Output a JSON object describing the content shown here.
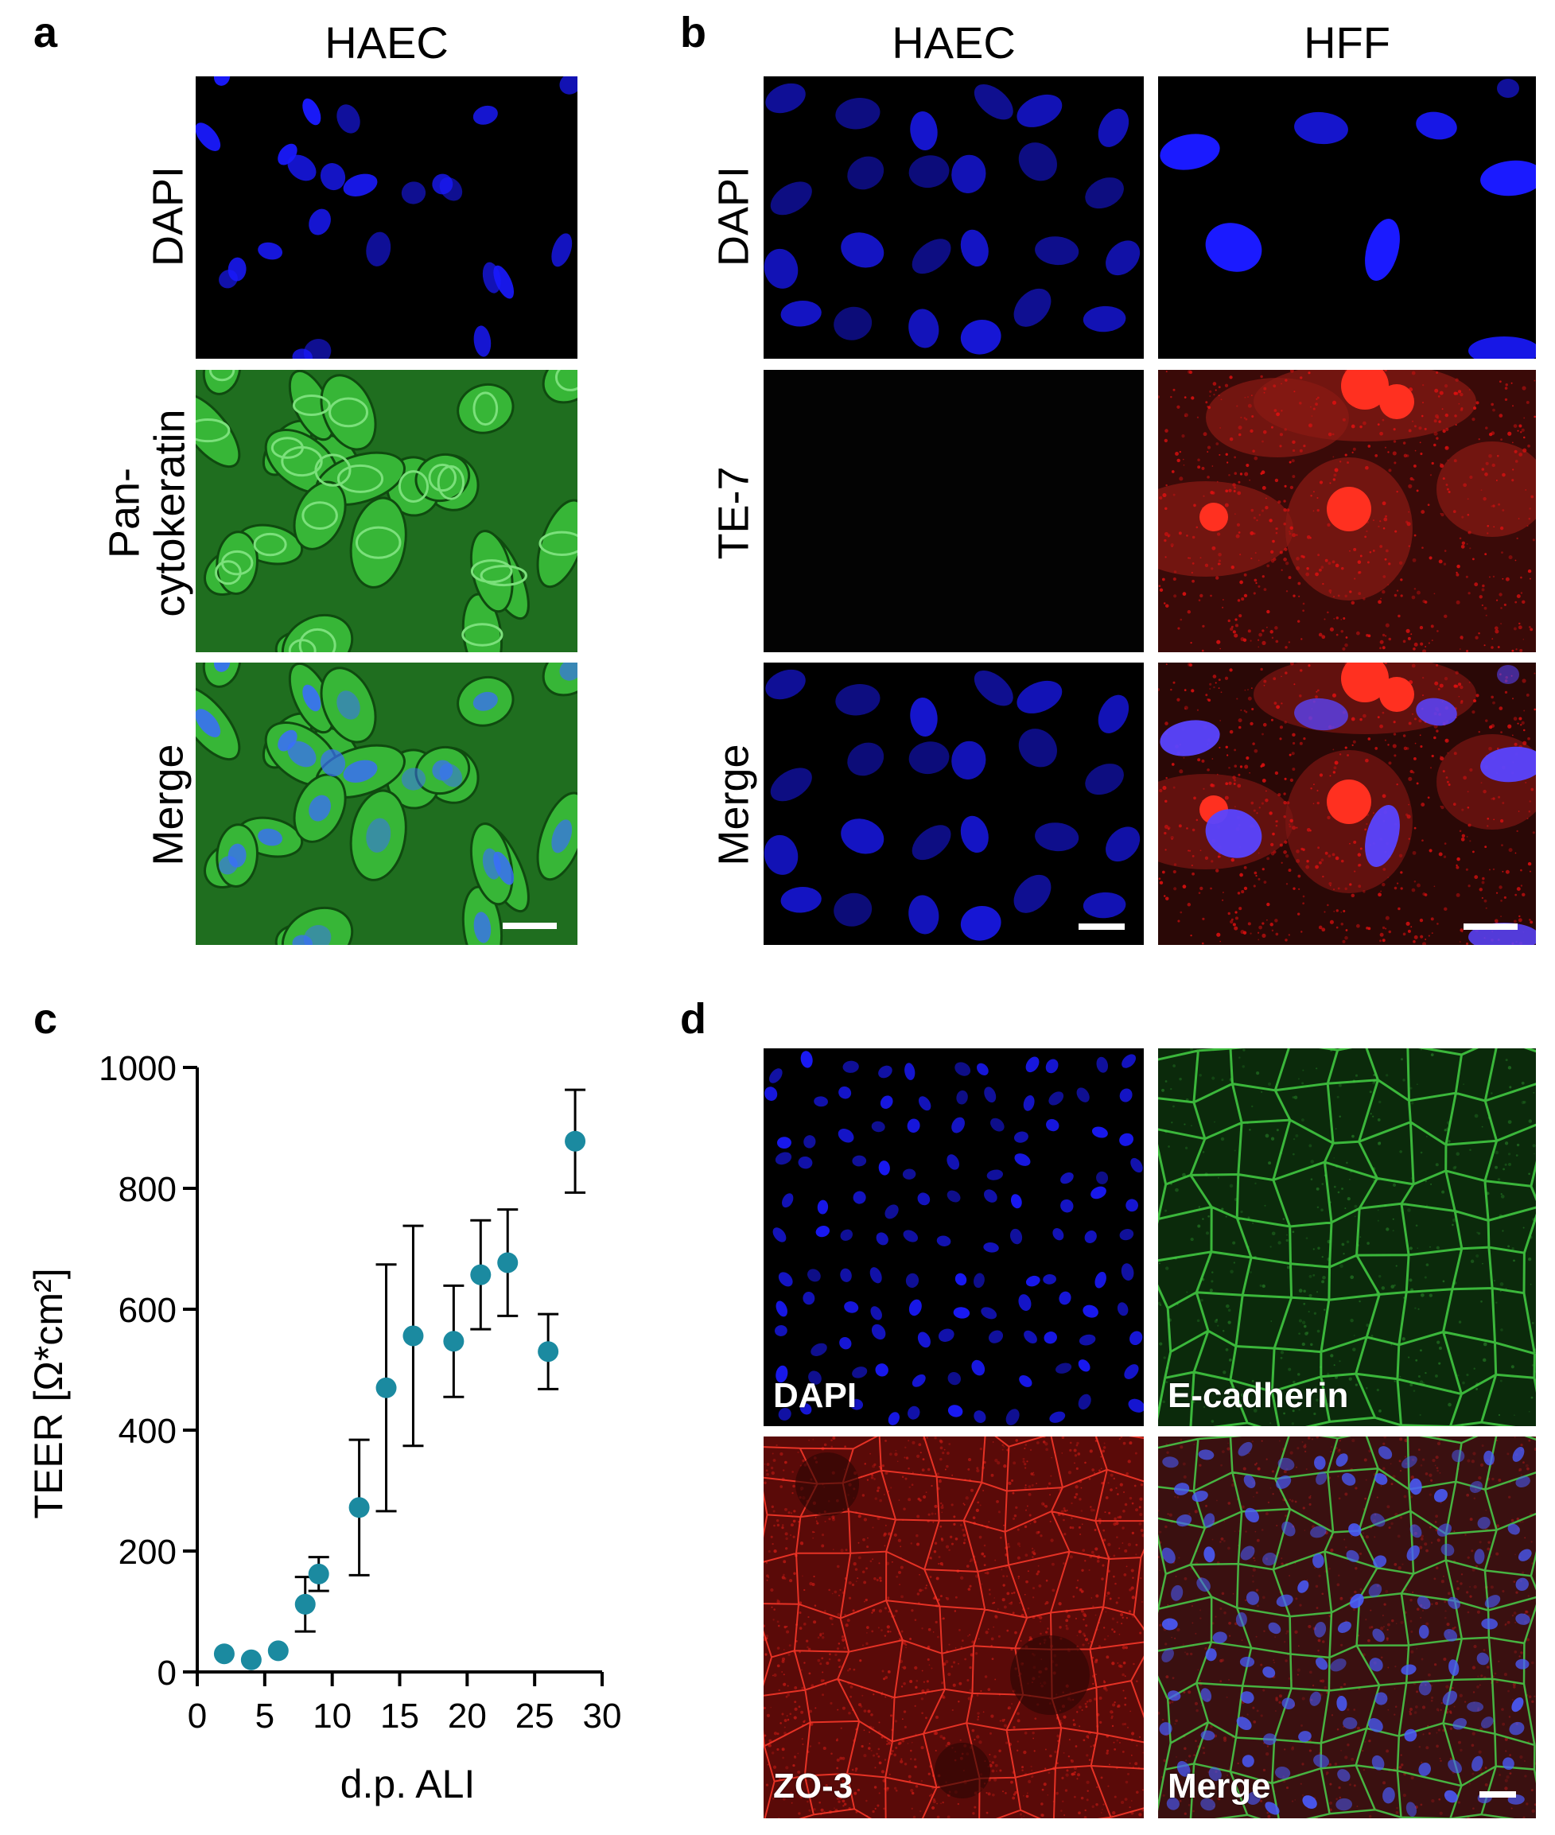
{
  "panel_a": {
    "letter": "a",
    "column_header": "HAEC",
    "rows": [
      {
        "label": "DAPI",
        "channel": "blue"
      },
      {
        "label_line1": "Pan-",
        "label_line2": "cytokeratin",
        "channel": "green"
      },
      {
        "label": "Merge",
        "channel": "merge"
      }
    ]
  },
  "panel_b": {
    "letter": "b",
    "column_headers": [
      "HAEC",
      "HFF"
    ],
    "rows": [
      {
        "label": "DAPI"
      },
      {
        "label": "TE-7"
      },
      {
        "label": "Merge"
      }
    ]
  },
  "panel_c": {
    "letter": "c"
  },
  "panel_d": {
    "letter": "d",
    "labels": [
      "DAPI",
      "E-cadherin",
      "ZO-3",
      "Merge"
    ]
  },
  "colors": {
    "dapi": "#1a1aff",
    "cytokeratin": "#2fbf2f",
    "te7": "#e01010",
    "marker": "#1b8aa0"
  },
  "chart_data": {
    "type": "scatter",
    "xlabel": "d.p. ALI",
    "ylabel": "TEER [Ω*cm²]",
    "xlim": [
      0,
      30
    ],
    "ylim": [
      0,
      1000
    ],
    "x_ticks": [
      0,
      5,
      10,
      15,
      20,
      25,
      30
    ],
    "y_ticks": [
      0,
      200,
      400,
      600,
      800,
      1000
    ],
    "points": [
      {
        "x": 2,
        "y": 30,
        "err": 0
      },
      {
        "x": 4,
        "y": 20,
        "err": 0
      },
      {
        "x": 6,
        "y": 35,
        "err": 0
      },
      {
        "x": 8,
        "y": 112,
        "err": 45
      },
      {
        "x": 9,
        "y": 162,
        "err": 28
      },
      {
        "x": 12,
        "y": 272,
        "err": 112
      },
      {
        "x": 14,
        "y": 470,
        "err": 204
      },
      {
        "x": 16,
        "y": 556,
        "err": 182
      },
      {
        "x": 19,
        "y": 547,
        "err": 92
      },
      {
        "x": 21,
        "y": 657,
        "err": 90
      },
      {
        "x": 23,
        "y": 677,
        "err": 88
      },
      {
        "x": 26,
        "y": 530,
        "err": 62
      },
      {
        "x": 28,
        "y": 878,
        "err": 85
      }
    ]
  }
}
